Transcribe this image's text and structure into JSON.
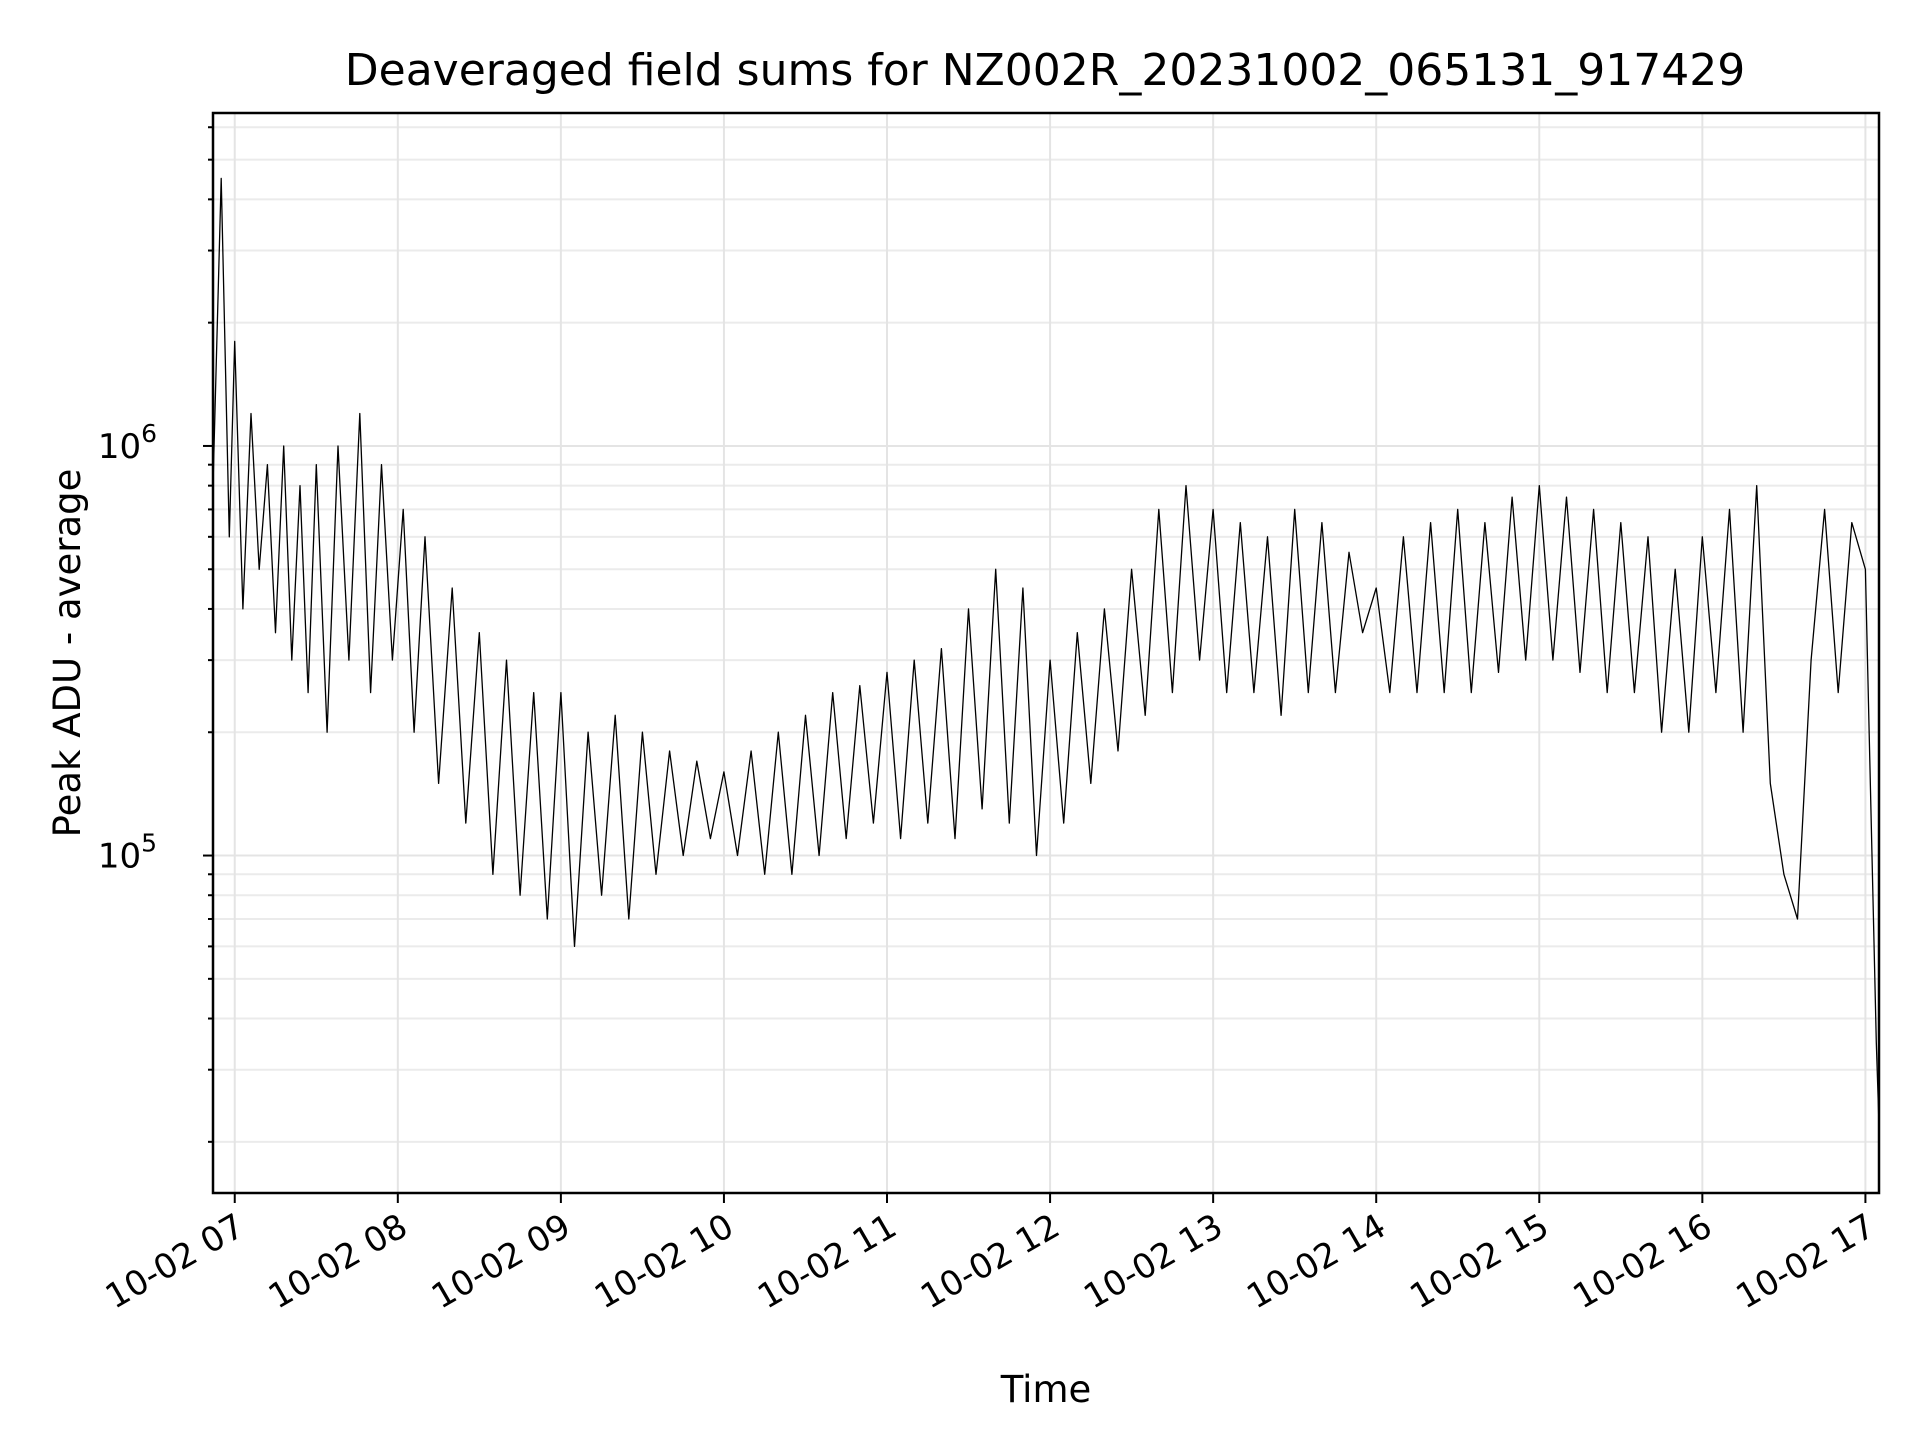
{
  "chart_data": {
    "type": "line",
    "title": "Deaveraged field sums for NZ002R_20231002_065131_917429",
    "xlabel": "Time",
    "ylabel": "Peak ADU - average",
    "x_ticks": [
      "10-02 07",
      "10-02 08",
      "10-02 09",
      "10-02 10",
      "10-02 11",
      "10-02 12",
      "10-02 13",
      "10-02 14",
      "10-02 15",
      "10-02 16",
      "10-02 17"
    ],
    "x_range": [
      "2023-10-02 06:52",
      "2023-10-02 17:05"
    ],
    "y_scale": "log",
    "ylim": [
      15000,
      6500000
    ],
    "y_ticks": [
      {
        "value": 100000,
        "base": "10",
        "exp": "5"
      },
      {
        "value": 1000000,
        "base": "10",
        "exp": "6"
      }
    ],
    "grid": true,
    "line_color": "#000000",
    "series": [
      {
        "description_note": "",
        "points": [
          [
            "2023-10-02 06:52",
            800000
          ],
          [
            "2023-10-02 06:55",
            4500000
          ],
          [
            "2023-10-02 06:58",
            600000
          ],
          [
            "2023-10-02 07:00",
            1800000
          ],
          [
            "2023-10-02 07:03",
            400000
          ],
          [
            "2023-10-02 07:06",
            1200000
          ],
          [
            "2023-10-02 07:09",
            500000
          ],
          [
            "2023-10-02 07:12",
            900000
          ],
          [
            "2023-10-02 07:15",
            350000
          ],
          [
            "2023-10-02 07:18",
            1000000
          ],
          [
            "2023-10-02 07:21",
            300000
          ],
          [
            "2023-10-02 07:24",
            800000
          ],
          [
            "2023-10-02 07:27",
            250000
          ],
          [
            "2023-10-02 07:30",
            900000
          ],
          [
            "2023-10-02 07:34",
            200000
          ],
          [
            "2023-10-02 07:38",
            1000000
          ],
          [
            "2023-10-02 07:42",
            300000
          ],
          [
            "2023-10-02 07:46",
            1200000
          ],
          [
            "2023-10-02 07:50",
            250000
          ],
          [
            "2023-10-02 07:54",
            900000
          ],
          [
            "2023-10-02 07:58",
            300000
          ],
          [
            "2023-10-02 08:02",
            700000
          ],
          [
            "2023-10-02 08:06",
            200000
          ],
          [
            "2023-10-02 08:10",
            600000
          ],
          [
            "2023-10-02 08:15",
            150000
          ],
          [
            "2023-10-02 08:20",
            450000
          ],
          [
            "2023-10-02 08:25",
            120000
          ],
          [
            "2023-10-02 08:30",
            350000
          ],
          [
            "2023-10-02 08:35",
            90000
          ],
          [
            "2023-10-02 08:40",
            300000
          ],
          [
            "2023-10-02 08:45",
            80000
          ],
          [
            "2023-10-02 08:50",
            250000
          ],
          [
            "2023-10-02 08:55",
            70000
          ],
          [
            "2023-10-02 09:00",
            250000
          ],
          [
            "2023-10-02 09:05",
            60000
          ],
          [
            "2023-10-02 09:10",
            200000
          ],
          [
            "2023-10-02 09:15",
            80000
          ],
          [
            "2023-10-02 09:20",
            220000
          ],
          [
            "2023-10-02 09:25",
            70000
          ],
          [
            "2023-10-02 09:30",
            200000
          ],
          [
            "2023-10-02 09:35",
            90000
          ],
          [
            "2023-10-02 09:40",
            180000
          ],
          [
            "2023-10-02 09:45",
            100000
          ],
          [
            "2023-10-02 09:50",
            170000
          ],
          [
            "2023-10-02 09:55",
            110000
          ],
          [
            "2023-10-02 10:00",
            160000
          ],
          [
            "2023-10-02 10:05",
            100000
          ],
          [
            "2023-10-02 10:10",
            180000
          ],
          [
            "2023-10-02 10:15",
            90000
          ],
          [
            "2023-10-02 10:20",
            200000
          ],
          [
            "2023-10-02 10:25",
            90000
          ],
          [
            "2023-10-02 10:30",
            220000
          ],
          [
            "2023-10-02 10:35",
            100000
          ],
          [
            "2023-10-02 10:40",
            250000
          ],
          [
            "2023-10-02 10:45",
            110000
          ],
          [
            "2023-10-02 10:50",
            260000
          ],
          [
            "2023-10-02 10:55",
            120000
          ],
          [
            "2023-10-02 11:00",
            280000
          ],
          [
            "2023-10-02 11:05",
            110000
          ],
          [
            "2023-10-02 11:10",
            300000
          ],
          [
            "2023-10-02 11:15",
            120000
          ],
          [
            "2023-10-02 11:20",
            320000
          ],
          [
            "2023-10-02 11:25",
            110000
          ],
          [
            "2023-10-02 11:30",
            400000
          ],
          [
            "2023-10-02 11:35",
            130000
          ],
          [
            "2023-10-02 11:40",
            500000
          ],
          [
            "2023-10-02 11:45",
            120000
          ],
          [
            "2023-10-02 11:50",
            450000
          ],
          [
            "2023-10-02 11:55",
            100000
          ],
          [
            "2023-10-02 12:00",
            300000
          ],
          [
            "2023-10-02 12:05",
            120000
          ],
          [
            "2023-10-02 12:10",
            350000
          ],
          [
            "2023-10-02 12:15",
            150000
          ],
          [
            "2023-10-02 12:20",
            400000
          ],
          [
            "2023-10-02 12:25",
            180000
          ],
          [
            "2023-10-02 12:30",
            500000
          ],
          [
            "2023-10-02 12:35",
            220000
          ],
          [
            "2023-10-02 12:40",
            700000
          ],
          [
            "2023-10-02 12:45",
            250000
          ],
          [
            "2023-10-02 12:50",
            800000
          ],
          [
            "2023-10-02 12:55",
            300000
          ],
          [
            "2023-10-02 13:00",
            700000
          ],
          [
            "2023-10-02 13:05",
            250000
          ],
          [
            "2023-10-02 13:10",
            650000
          ],
          [
            "2023-10-02 13:15",
            250000
          ],
          [
            "2023-10-02 13:20",
            600000
          ],
          [
            "2023-10-02 13:25",
            220000
          ],
          [
            "2023-10-02 13:30",
            700000
          ],
          [
            "2023-10-02 13:35",
            250000
          ],
          [
            "2023-10-02 13:40",
            650000
          ],
          [
            "2023-10-02 13:45",
            250000
          ],
          [
            "2023-10-02 13:50",
            550000
          ],
          [
            "2023-10-02 13:55",
            350000
          ],
          [
            "2023-10-02 14:00",
            450000
          ],
          [
            "2023-10-02 14:05",
            250000
          ],
          [
            "2023-10-02 14:10",
            600000
          ],
          [
            "2023-10-02 14:15",
            250000
          ],
          [
            "2023-10-02 14:20",
            650000
          ],
          [
            "2023-10-02 14:25",
            250000
          ],
          [
            "2023-10-02 14:30",
            700000
          ],
          [
            "2023-10-02 14:35",
            250000
          ],
          [
            "2023-10-02 14:40",
            650000
          ],
          [
            "2023-10-02 14:45",
            280000
          ],
          [
            "2023-10-02 14:50",
            750000
          ],
          [
            "2023-10-02 14:55",
            300000
          ],
          [
            "2023-10-02 15:00",
            800000
          ],
          [
            "2023-10-02 15:05",
            300000
          ],
          [
            "2023-10-02 15:10",
            750000
          ],
          [
            "2023-10-02 15:15",
            280000
          ],
          [
            "2023-10-02 15:20",
            700000
          ],
          [
            "2023-10-02 15:25",
            250000
          ],
          [
            "2023-10-02 15:30",
            650000
          ],
          [
            "2023-10-02 15:35",
            250000
          ],
          [
            "2023-10-02 15:40",
            600000
          ],
          [
            "2023-10-02 15:45",
            200000
          ],
          [
            "2023-10-02 15:50",
            500000
          ],
          [
            "2023-10-02 15:55",
            200000
          ],
          [
            "2023-10-02 16:00",
            600000
          ],
          [
            "2023-10-02 16:05",
            250000
          ],
          [
            "2023-10-02 16:10",
            700000
          ],
          [
            "2023-10-02 16:15",
            200000
          ],
          [
            "2023-10-02 16:20",
            800000
          ],
          [
            "2023-10-02 16:25",
            150000
          ],
          [
            "2023-10-02 16:30",
            90000
          ],
          [
            "2023-10-02 16:35",
            70000
          ],
          [
            "2023-10-02 16:40",
            300000
          ],
          [
            "2023-10-02 16:45",
            700000
          ],
          [
            "2023-10-02 16:50",
            250000
          ],
          [
            "2023-10-02 16:55",
            650000
          ],
          [
            "2023-10-02 17:00",
            500000
          ],
          [
            "2023-10-02 17:04",
            35000
          ],
          [
            "2023-10-02 17:05",
            22000
          ]
        ]
      }
    ]
  }
}
